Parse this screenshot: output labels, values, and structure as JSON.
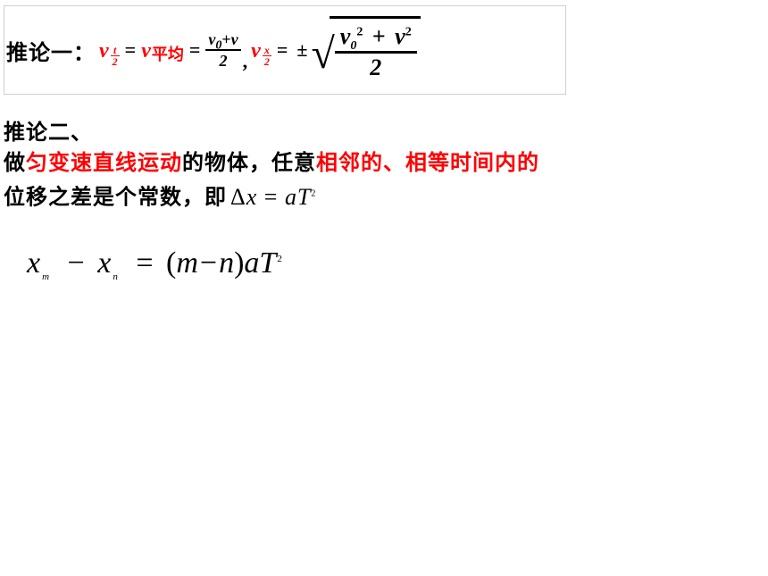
{
  "colors": {
    "text_black": "#000000",
    "text_red": "#ff0000",
    "border_gray": "#d0d0d0",
    "background": "#ffffff"
  },
  "typography": {
    "body_font": "SimSun",
    "math_font": "Times New Roman",
    "label_size_pt": 24,
    "math_size_pt": 22,
    "big_frac_size_pt": 26,
    "formula_size_pt": 34
  },
  "cor1": {
    "label": "推论一：",
    "lhs1_var": "v",
    "lhs1_sub_num": "t",
    "lhs1_sub_den": "2",
    "eq": "=",
    "mid_var": "v",
    "mid_sub_text": "平均",
    "rhs1_num": "v₀+v",
    "rhs1_num_parts": {
      "a": "v",
      "a_sub": "0",
      "op": "+",
      "b": "v"
    },
    "rhs1_den": "2",
    "lhs2_var": "v",
    "lhs2_sub_num": "x",
    "lhs2_sub_den": "2",
    "pm": "±",
    "sqrt_num_parts": {
      "a": "v",
      "a_sub": "0",
      "a_sup": "2",
      "op": "+",
      "b": "v",
      "b_sup": "2"
    },
    "sqrt_den": "2",
    "comma": ","
  },
  "cor2": {
    "title": "推论二、",
    "line2_p1": "做",
    "line2_red1": "匀变速直线运动",
    "line2_p2": "的物体，任意",
    "line2_red2": "相邻的、相等时间内的",
    "line3_p1": "位移之差是个常数，即",
    "eq_delta": "Δ",
    "eq_x": "x",
    "eq_eq": "=",
    "eq_a": "a",
    "eq_T": "T",
    "eq_T_sup": "2"
  },
  "formula": {
    "x1": "x",
    "sub_m": "m",
    "minus": "−",
    "x2": "x",
    "sub_n": "n",
    "eq": "=",
    "lpar": "(",
    "m": "m",
    "inner_minus": "−",
    "n": "n",
    "rpar": ")",
    "a": "a",
    "T": "T",
    "T_sup": "2"
  }
}
